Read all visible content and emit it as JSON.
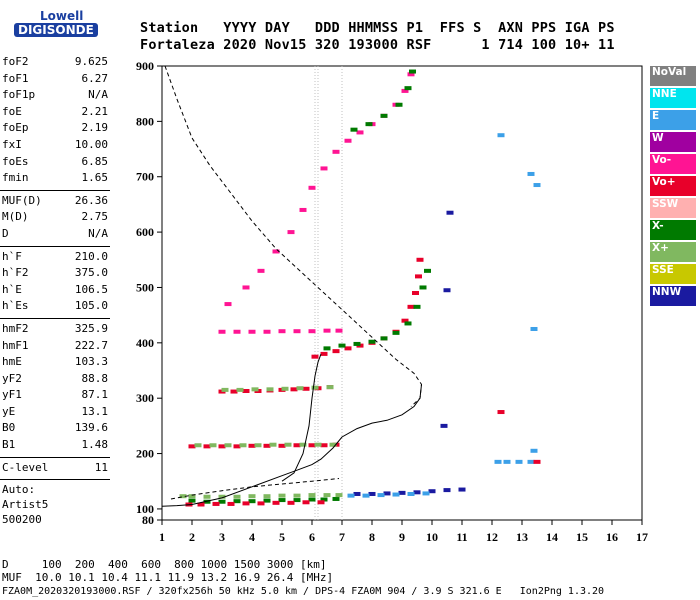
{
  "logo": {
    "line1": "Lowell",
    "line2": "DIGISONDE"
  },
  "header": {
    "line1": "Station   YYYY DAY   DDD HHMMSS P1  FFS S  AXN PPS IGA PS",
    "line2": "Fortaleza 2020 Nov15 320 193000 RSF      1 714 100 10+ 11"
  },
  "params": {
    "group1": [
      {
        "k": "foF2",
        "v": "9.625"
      },
      {
        "k": "foF1",
        "v": "6.27"
      },
      {
        "k": "foF1p",
        "v": "N/A"
      },
      {
        "k": "foE",
        "v": "2.21"
      },
      {
        "k": "foEp",
        "v": "2.19"
      },
      {
        "k": "fxI",
        "v": "10.00"
      },
      {
        "k": "foEs",
        "v": "6.85"
      },
      {
        "k": "fmin",
        "v": "1.65"
      }
    ],
    "group2": [
      {
        "k": "MUF(D)",
        "v": "26.36"
      },
      {
        "k": "M(D)",
        "v": "2.75"
      },
      {
        "k": "D",
        "v": "N/A"
      }
    ],
    "group3": [
      {
        "k": "h`F",
        "v": "210.0"
      },
      {
        "k": "h`F2",
        "v": "375.0"
      },
      {
        "k": "h`E",
        "v": "106.5"
      },
      {
        "k": "h`Es",
        "v": "105.0"
      }
    ],
    "group4": [
      {
        "k": "hmF2",
        "v": "325.9"
      },
      {
        "k": "hmF1",
        "v": "222.7"
      },
      {
        "k": "hmE",
        "v": "103.3"
      },
      {
        "k": "yF2",
        "v": "88.8"
      },
      {
        "k": "yF1",
        "v": "87.1"
      },
      {
        "k": "yE",
        "v": "13.1"
      },
      {
        "k": "B0",
        "v": "139.6"
      },
      {
        "k": "B1",
        "v": "1.48"
      }
    ],
    "group5": [
      {
        "k": "C-level",
        "v": "11"
      }
    ],
    "auto_label": "Auto:",
    "artist": "Artist5",
    "artist_version": "500200"
  },
  "legend": [
    {
      "label": "NoVal",
      "color": "#808080"
    },
    {
      "label": "NNE",
      "color": "#00e5ee"
    },
    {
      "label": "E",
      "color": "#3ca0e8"
    },
    {
      "label": "W",
      "color": "#a000a0"
    },
    {
      "label": "Vo-",
      "color": "#ff1493"
    },
    {
      "label": "Vo+",
      "color": "#e8002a"
    },
    {
      "label": "SSW",
      "color": "#ffb0b0"
    },
    {
      "label": "X-",
      "color": "#007a00"
    },
    {
      "label": "X+",
      "color": "#80b860"
    },
    {
      "label": "SSE",
      "color": "#c8c800"
    },
    {
      "label": "NNW",
      "color": "#1a1aa0"
    }
  ],
  "footer": {
    "line1": "D     100  200  400  600  800 1000 1500 3000 [km]",
    "line2": "MUF  10.0 10.1 10.4 11.1 11.9 13.2 16.9 26.4 [MHz]",
    "line3": "FZA0M_2020320193000.RSF / 320fx256h 50 kHz 5.0 km / DPS-4 FZA0M 904 / 3.9 S 321.6 E   Ion2Png 1.3.20"
  },
  "chart_data": {
    "type": "scatter",
    "xlim": [
      1,
      17
    ],
    "ylim": [
      80,
      900
    ],
    "x_ticks": [
      1,
      2,
      3,
      4,
      5,
      6,
      7,
      8,
      9,
      10,
      11,
      12,
      13,
      14,
      15,
      16,
      17
    ],
    "y_ticks": [
      80,
      100,
      200,
      300,
      400,
      500,
      600,
      700,
      800,
      900
    ],
    "series": [
      {
        "style": "X-",
        "x": [
          2.0,
          2.5,
          3.0,
          3.5,
          4.0,
          4.5,
          5.0,
          5.5,
          6.0,
          6.4,
          6.8
        ],
        "y": [
          115,
          113,
          113,
          114,
          114,
          115,
          116,
          116,
          117,
          117,
          118
        ]
      },
      {
        "style": "Vo+",
        "x": [
          1.9,
          2.3,
          2.8,
          3.3,
          3.8,
          4.3,
          4.8,
          5.3,
          5.8,
          6.3
        ],
        "y": [
          108,
          108,
          109,
          109,
          110,
          110,
          111,
          111,
          112,
          112
        ]
      },
      {
        "style": "X+",
        "x": [
          1.7,
          2.0,
          2.5,
          3.0,
          3.5,
          4.0,
          4.5,
          5.0,
          5.5,
          6.0,
          6.5,
          6.9
        ],
        "y": [
          123,
          123,
          122,
          122,
          122,
          123,
          123,
          124,
          124,
          125,
          125,
          125
        ]
      },
      {
        "style": "NNW",
        "x": [
          7.5,
          8.0,
          8.5,
          9.0,
          9.5,
          10.0,
          10.5,
          11.0
        ],
        "y": [
          127,
          127,
          128,
          129,
          130,
          132,
          134,
          135
        ]
      },
      {
        "style": "E",
        "x": [
          7.3,
          7.8,
          8.3,
          8.8,
          9.3,
          9.8
        ],
        "y": [
          124,
          124,
          125,
          126,
          127,
          128
        ]
      },
      {
        "style": "Vo+",
        "x": [
          2.0,
          2.5,
          3.0,
          3.5,
          4.0,
          4.5,
          5.0,
          5.5,
          6.0,
          6.4,
          6.8
        ],
        "y": [
          213,
          213,
          213,
          213,
          214,
          214,
          214,
          215,
          215,
          215,
          216
        ]
      },
      {
        "style": "X+",
        "x": [
          2.2,
          2.7,
          3.2,
          3.7,
          4.2,
          4.7,
          5.2,
          5.7,
          6.2,
          6.7
        ],
        "y": [
          215,
          215,
          215,
          215,
          215,
          216,
          216,
          216,
          216,
          216
        ]
      },
      {
        "style": "Vo+",
        "x": [
          3.0,
          3.4,
          3.8,
          4.2,
          4.6,
          5.0,
          5.4,
          5.8,
          6.2,
          6.6
        ],
        "y": [
          312,
          312,
          313,
          313,
          314,
          315,
          316,
          317,
          318,
          320
        ]
      },
      {
        "style": "X+",
        "x": [
          3.1,
          3.6,
          4.1,
          4.6,
          5.1,
          5.6,
          6.1,
          6.6
        ],
        "y": [
          315,
          315,
          316,
          316,
          317,
          318,
          319,
          320
        ]
      },
      {
        "style": "Vo-",
        "x": [
          3.0,
          3.5,
          4.0,
          4.5,
          5.0,
          5.5,
          6.0,
          6.5,
          6.9
        ],
        "y": [
          420,
          420,
          420,
          420,
          421,
          421,
          421,
          422,
          422
        ]
      },
      {
        "style": "Vo+",
        "x": [
          6.1,
          6.4,
          6.8,
          7.2,
          7.6,
          8.0,
          8.4,
          8.8,
          9.1,
          9.3,
          9.45,
          9.55,
          9.6
        ],
        "y": [
          375,
          380,
          385,
          390,
          395,
          400,
          408,
          420,
          440,
          465,
          490,
          520,
          550
        ]
      },
      {
        "style": "X-",
        "x": [
          6.5,
          7.0,
          7.5,
          8.0,
          8.4,
          8.8,
          9.2,
          9.5,
          9.7,
          9.85
        ],
        "y": [
          390,
          395,
          398,
          402,
          408,
          418,
          435,
          465,
          500,
          530
        ]
      },
      {
        "style": "Vo-",
        "x": [
          3.2,
          3.8,
          4.3,
          4.8,
          5.3,
          5.7,
          6.0,
          6.4,
          6.8,
          7.2,
          7.6,
          8.0,
          8.4,
          8.8,
          9.1,
          9.3
        ],
        "y": [
          470,
          500,
          530,
          565,
          600,
          640,
          680,
          715,
          745,
          765,
          780,
          795,
          810,
          830,
          855,
          885
        ]
      },
      {
        "style": "X-",
        "x": [
          7.4,
          7.9,
          8.4,
          8.9,
          9.2,
          9.35
        ],
        "y": [
          785,
          795,
          810,
          830,
          860,
          890
        ]
      },
      {
        "style": "E",
        "x": [
          12.3,
          13.3,
          13.5,
          13.4
        ],
        "y": [
          775,
          705,
          685,
          425
        ]
      },
      {
        "style": "NNW",
        "x": [
          10.6,
          10.5,
          10.4
        ],
        "y": [
          635,
          495,
          250
        ]
      },
      {
        "style": "E",
        "x": [
          12.2,
          12.5,
          12.9,
          13.3,
          13.4
        ],
        "y": [
          185,
          185,
          185,
          185,
          205
        ]
      },
      {
        "style": "Vo+",
        "x": [
          12.3,
          13.5
        ],
        "y": [
          275,
          185
        ]
      }
    ],
    "curves": [
      {
        "style": "dashed",
        "x": [
          1.1,
          1.5,
          2.0,
          2.6,
          3.3,
          4.0,
          4.8,
          5.6,
          6.4,
          7.2,
          8.0,
          8.8,
          9.4,
          9.65,
          9.6,
          9.3
        ],
        "y": [
          900,
          840,
          770,
          720,
          670,
          620,
          570,
          530,
          490,
          450,
          410,
          370,
          345,
          325,
          300,
          285
        ]
      },
      {
        "style": "solid",
        "x": [
          1.0,
          1.5,
          2.0,
          3.0,
          4.0,
          5.0,
          5.5,
          6.0,
          6.3,
          6.7,
          7.0,
          7.5,
          8.0,
          8.5,
          9.0,
          9.4,
          9.6,
          9.65
        ],
        "y": [
          105,
          106,
          108,
          120,
          140,
          160,
          170,
          180,
          190,
          210,
          230,
          245,
          255,
          260,
          270,
          285,
          300,
          325
        ]
      },
      {
        "style": "dashed",
        "x": [
          1.3,
          2.0,
          3.0,
          4.0,
          5.0,
          6.0,
          6.9
        ],
        "y": [
          118,
          125,
          133,
          140,
          145,
          150,
          155
        ]
      },
      {
        "style": "solid",
        "x": [
          5.0,
          5.4,
          5.7,
          5.9,
          6.0,
          6.1,
          6.2,
          6.3
        ],
        "y": [
          150,
          165,
          200,
          250,
          300,
          340,
          365,
          380
        ]
      }
    ],
    "vlines": [
      6.1,
      6.2,
      7.0
    ]
  }
}
